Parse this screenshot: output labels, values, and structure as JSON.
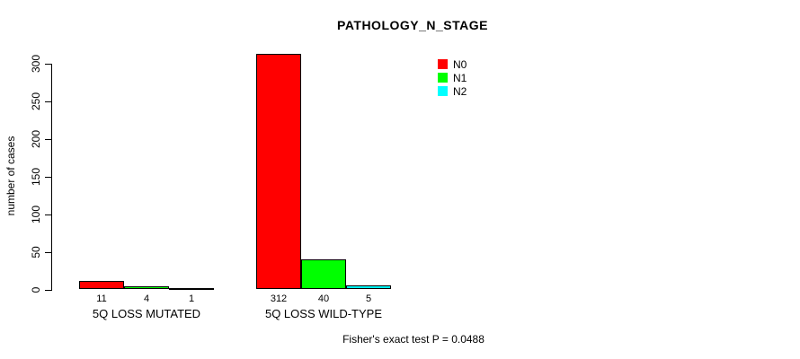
{
  "chart_data": {
    "type": "bar",
    "grouped": true,
    "title": "PATHOLOGY_N_STAGE",
    "xlabel": "",
    "ylabel": "number of cases",
    "ylim": [
      0,
      300
    ],
    "yticks": [
      0,
      50,
      100,
      150,
      200,
      250,
      300
    ],
    "grid": false,
    "legend_position": "top-right",
    "categories": [
      "5Q LOSS MUTATED",
      "5Q LOSS WILD-TYPE"
    ],
    "series": [
      {
        "name": "N0",
        "color": "#FF0000",
        "values": [
          11,
          312
        ]
      },
      {
        "name": "N1",
        "color": "#00FF00",
        "values": [
          4,
          40
        ]
      },
      {
        "name": "N2",
        "color": "#00FFFF",
        "values": [
          1,
          5
        ]
      }
    ],
    "bar_value_labels_shown": true,
    "annotation": "Fisher's exact test P = 0.0488"
  },
  "colors": {
    "axis": "#000000",
    "text": "#000000",
    "background": "#FFFFFF"
  }
}
